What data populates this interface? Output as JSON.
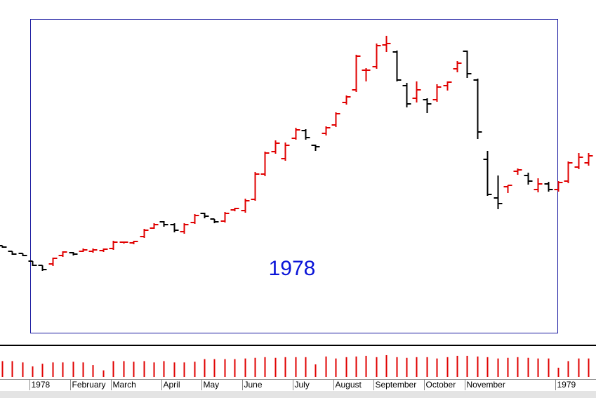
{
  "chart_data": {
    "type": "ohlc",
    "annotation": "1978",
    "up_color": "#e00000",
    "down_color": "#000000",
    "volume_color": "#e00000",
    "x": [
      0,
      1,
      2,
      3,
      4,
      5,
      6,
      7,
      8,
      9,
      10,
      11,
      12,
      13,
      14,
      15,
      16,
      17,
      18,
      19,
      20,
      21,
      22,
      23,
      24,
      25,
      26,
      27,
      28,
      29,
      30,
      31,
      32,
      33,
      34,
      35,
      36,
      37,
      38,
      39,
      40,
      41,
      42,
      43,
      44,
      45,
      46,
      47,
      48,
      49,
      50,
      51,
      52,
      53,
      54,
      55,
      56,
      57,
      58
    ],
    "xlim": [
      -0.2,
      58.75
    ],
    "ylim": [
      20,
      500
    ],
    "open": [
      150,
      142,
      139,
      128,
      122,
      124,
      136,
      140,
      142,
      142,
      143,
      146,
      155,
      154,
      163,
      175,
      184,
      180,
      170,
      183,
      196,
      188,
      185,
      201,
      200,
      216,
      252,
      284,
      274,
      303,
      314,
      293,
      310,
      322,
      354,
      372,
      400,
      405,
      436,
      426,
      378,
      360,
      358,
      358,
      378,
      402,
      427,
      386,
      273,
      218,
      234,
      256,
      250,
      230,
      238,
      230,
      242,
      262,
      268
    ],
    "high": [
      150,
      142,
      139,
      128,
      122,
      133,
      142,
      141,
      146,
      146,
      146,
      157,
      156,
      157,
      174,
      182,
      185,
      182,
      182,
      195,
      197,
      188,
      198,
      204,
      217,
      255,
      284,
      300,
      297,
      318,
      316,
      294,
      320,
      340,
      364,
      422,
      403,
      438,
      449,
      428,
      382,
      384,
      360,
      380,
      384,
      413,
      428,
      388,
      285,
      250,
      236,
      260,
      254,
      246,
      241,
      242,
      270,
      282,
      282
    ],
    "low": [
      148,
      138,
      136,
      122,
      115,
      122,
      135,
      137,
      142,
      141,
      142,
      145,
      154,
      153,
      162,
      175,
      178,
      170,
      168,
      182,
      190,
      183,
      184,
      200,
      198,
      215,
      250,
      282,
      272,
      302,
      302,
      286,
      308,
      320,
      352,
      370,
      385,
      403,
      427,
      385,
      348,
      355,
      340,
      356,
      372,
      398,
      390,
      303,
      222,
      203,
      226,
      252,
      238,
      227,
      228,
      228,
      240,
      260,
      265
    ],
    "close": [
      148,
      138,
      136,
      122,
      116,
      132,
      141,
      138,
      144,
      144,
      145,
      155,
      155,
      156,
      172,
      180,
      180,
      172,
      180,
      193,
      192,
      184,
      196,
      203,
      214,
      252,
      282,
      296,
      293,
      315,
      304,
      291,
      318,
      338,
      362,
      420,
      400,
      435,
      438,
      386,
      352,
      372,
      352,
      376,
      383,
      410,
      395,
      312,
      223,
      210,
      236,
      258,
      242,
      238,
      230,
      240,
      268,
      276,
      278
    ],
    "volume": [
      24,
      24,
      22,
      16,
      20,
      22,
      22,
      23,
      22,
      18,
      10,
      24,
      24,
      23,
      24,
      22,
      24,
      22,
      22,
      23,
      27,
      27,
      27,
      27,
      28,
      29,
      30,
      29,
      30,
      30,
      30,
      19,
      31,
      28,
      30,
      31,
      32,
      30,
      33,
      30,
      29,
      30,
      30,
      28,
      30,
      32,
      32,
      31,
      30,
      28,
      29,
      30,
      29,
      28,
      28,
      14,
      24,
      28,
      28
    ],
    "volume_ylim": [
      0,
      50
    ],
    "xticks": [
      {
        "value": 2.75,
        "label": "1978"
      },
      {
        "value": 6.75,
        "label": "February"
      },
      {
        "value": 10.75,
        "label": "March"
      },
      {
        "value": 15.75,
        "label": "April"
      },
      {
        "value": 19.75,
        "label": "May"
      },
      {
        "value": 23.75,
        "label": "June"
      },
      {
        "value": 28.75,
        "label": "July"
      },
      {
        "value": 32.75,
        "label": "August"
      },
      {
        "value": 36.75,
        "label": "September"
      },
      {
        "value": 41.75,
        "label": "October"
      },
      {
        "value": 45.75,
        "label": "November"
      },
      {
        "value": 54.75,
        "label": "1979"
      }
    ]
  }
}
